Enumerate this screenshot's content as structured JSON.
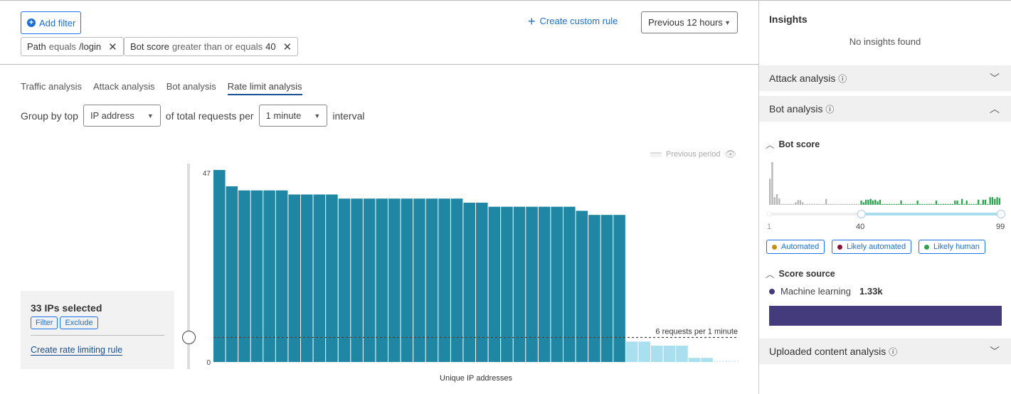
{
  "toolbar": {
    "add_filter": "Add filter",
    "create_custom_rule": "Create custom rule",
    "time_range": "Previous 12 hours"
  },
  "filters": [
    {
      "field": "Path",
      "operator": "equals",
      "value": "/login"
    },
    {
      "field": "Bot score",
      "operator": "greater than or equals",
      "value": "40"
    }
  ],
  "tabs": [
    {
      "label": "Traffic analysis"
    },
    {
      "label": "Attack analysis"
    },
    {
      "label": "Bot analysis"
    },
    {
      "label": "Rate limit analysis",
      "active": true
    }
  ],
  "groupby": {
    "prefix": "Group by top",
    "field": "IP address",
    "middle": "of total requests per",
    "interval": "1 minute",
    "suffix": "interval"
  },
  "legend": {
    "previous_period": "Previous period"
  },
  "selection": {
    "title": "33 IPs selected",
    "filter": "Filter",
    "exclude": "Exclude",
    "create_rule": "Create rate limiting rule"
  },
  "chart_data": {
    "type": "bar",
    "xlabel": "Unique IP addresses",
    "ylim": [
      0,
      47
    ],
    "yticks": [
      "0",
      "47"
    ],
    "threshold": {
      "value": 6,
      "label": "6 requests per 1 minute"
    },
    "selected_count": 33,
    "values": [
      47,
      43,
      42,
      42,
      42,
      42,
      41,
      41,
      41,
      41,
      40,
      40,
      40,
      40,
      40,
      40,
      40,
      40,
      40,
      40,
      39,
      39,
      38,
      38,
      38,
      38,
      38,
      38,
      38,
      37,
      36,
      36,
      36,
      5,
      5,
      4,
      4,
      4,
      1,
      1,
      0,
      0
    ],
    "colors": {
      "selected": "#1f87a3",
      "unselected": "#a9dfee"
    }
  },
  "insights": {
    "title": "Insights",
    "empty": "No insights found",
    "attack_analysis": "Attack analysis",
    "bot_analysis": "Bot analysis",
    "bot_score": {
      "title": "Bot score",
      "min": "1",
      "selected_min": "40",
      "max": "99",
      "range": [
        40,
        99
      ],
      "histogram": [
        61,
        100,
        18,
        25,
        15,
        2,
        2,
        2,
        2,
        2,
        2,
        6,
        11,
        11,
        6,
        2,
        2,
        2,
        2,
        2,
        2,
        2,
        2,
        2,
        14,
        2,
        2,
        2,
        2,
        2,
        2,
        2,
        2,
        2,
        2,
        2,
        2,
        2,
        2,
        10,
        6,
        12,
        12,
        14,
        10,
        12,
        8,
        12,
        2,
        2,
        2,
        2,
        2,
        2,
        2,
        2,
        10,
        2,
        2,
        2,
        2,
        2,
        2,
        10,
        2,
        2,
        2,
        2,
        2,
        2,
        2,
        10,
        2,
        2,
        2,
        2,
        2,
        2,
        2,
        10,
        10,
        2,
        14,
        2,
        10,
        2,
        2,
        2,
        2,
        12,
        2,
        12,
        12,
        2,
        18,
        18,
        14,
        18,
        16
      ],
      "colors": {
        "below": "#b5b5b5",
        "above": "#2ea44f"
      }
    },
    "bot_classes": [
      {
        "label": "Automated",
        "color": "#c8900a"
      },
      {
        "label": "Likely automated",
        "color": "#8b0f3a"
      },
      {
        "label": "Likely human",
        "color": "#2ea44f"
      }
    ],
    "score_source": {
      "title": "Score source",
      "label": "Machine learning",
      "value": "1.33k",
      "color": "#433b7c"
    },
    "uploaded_content": "Uploaded content analysis"
  }
}
